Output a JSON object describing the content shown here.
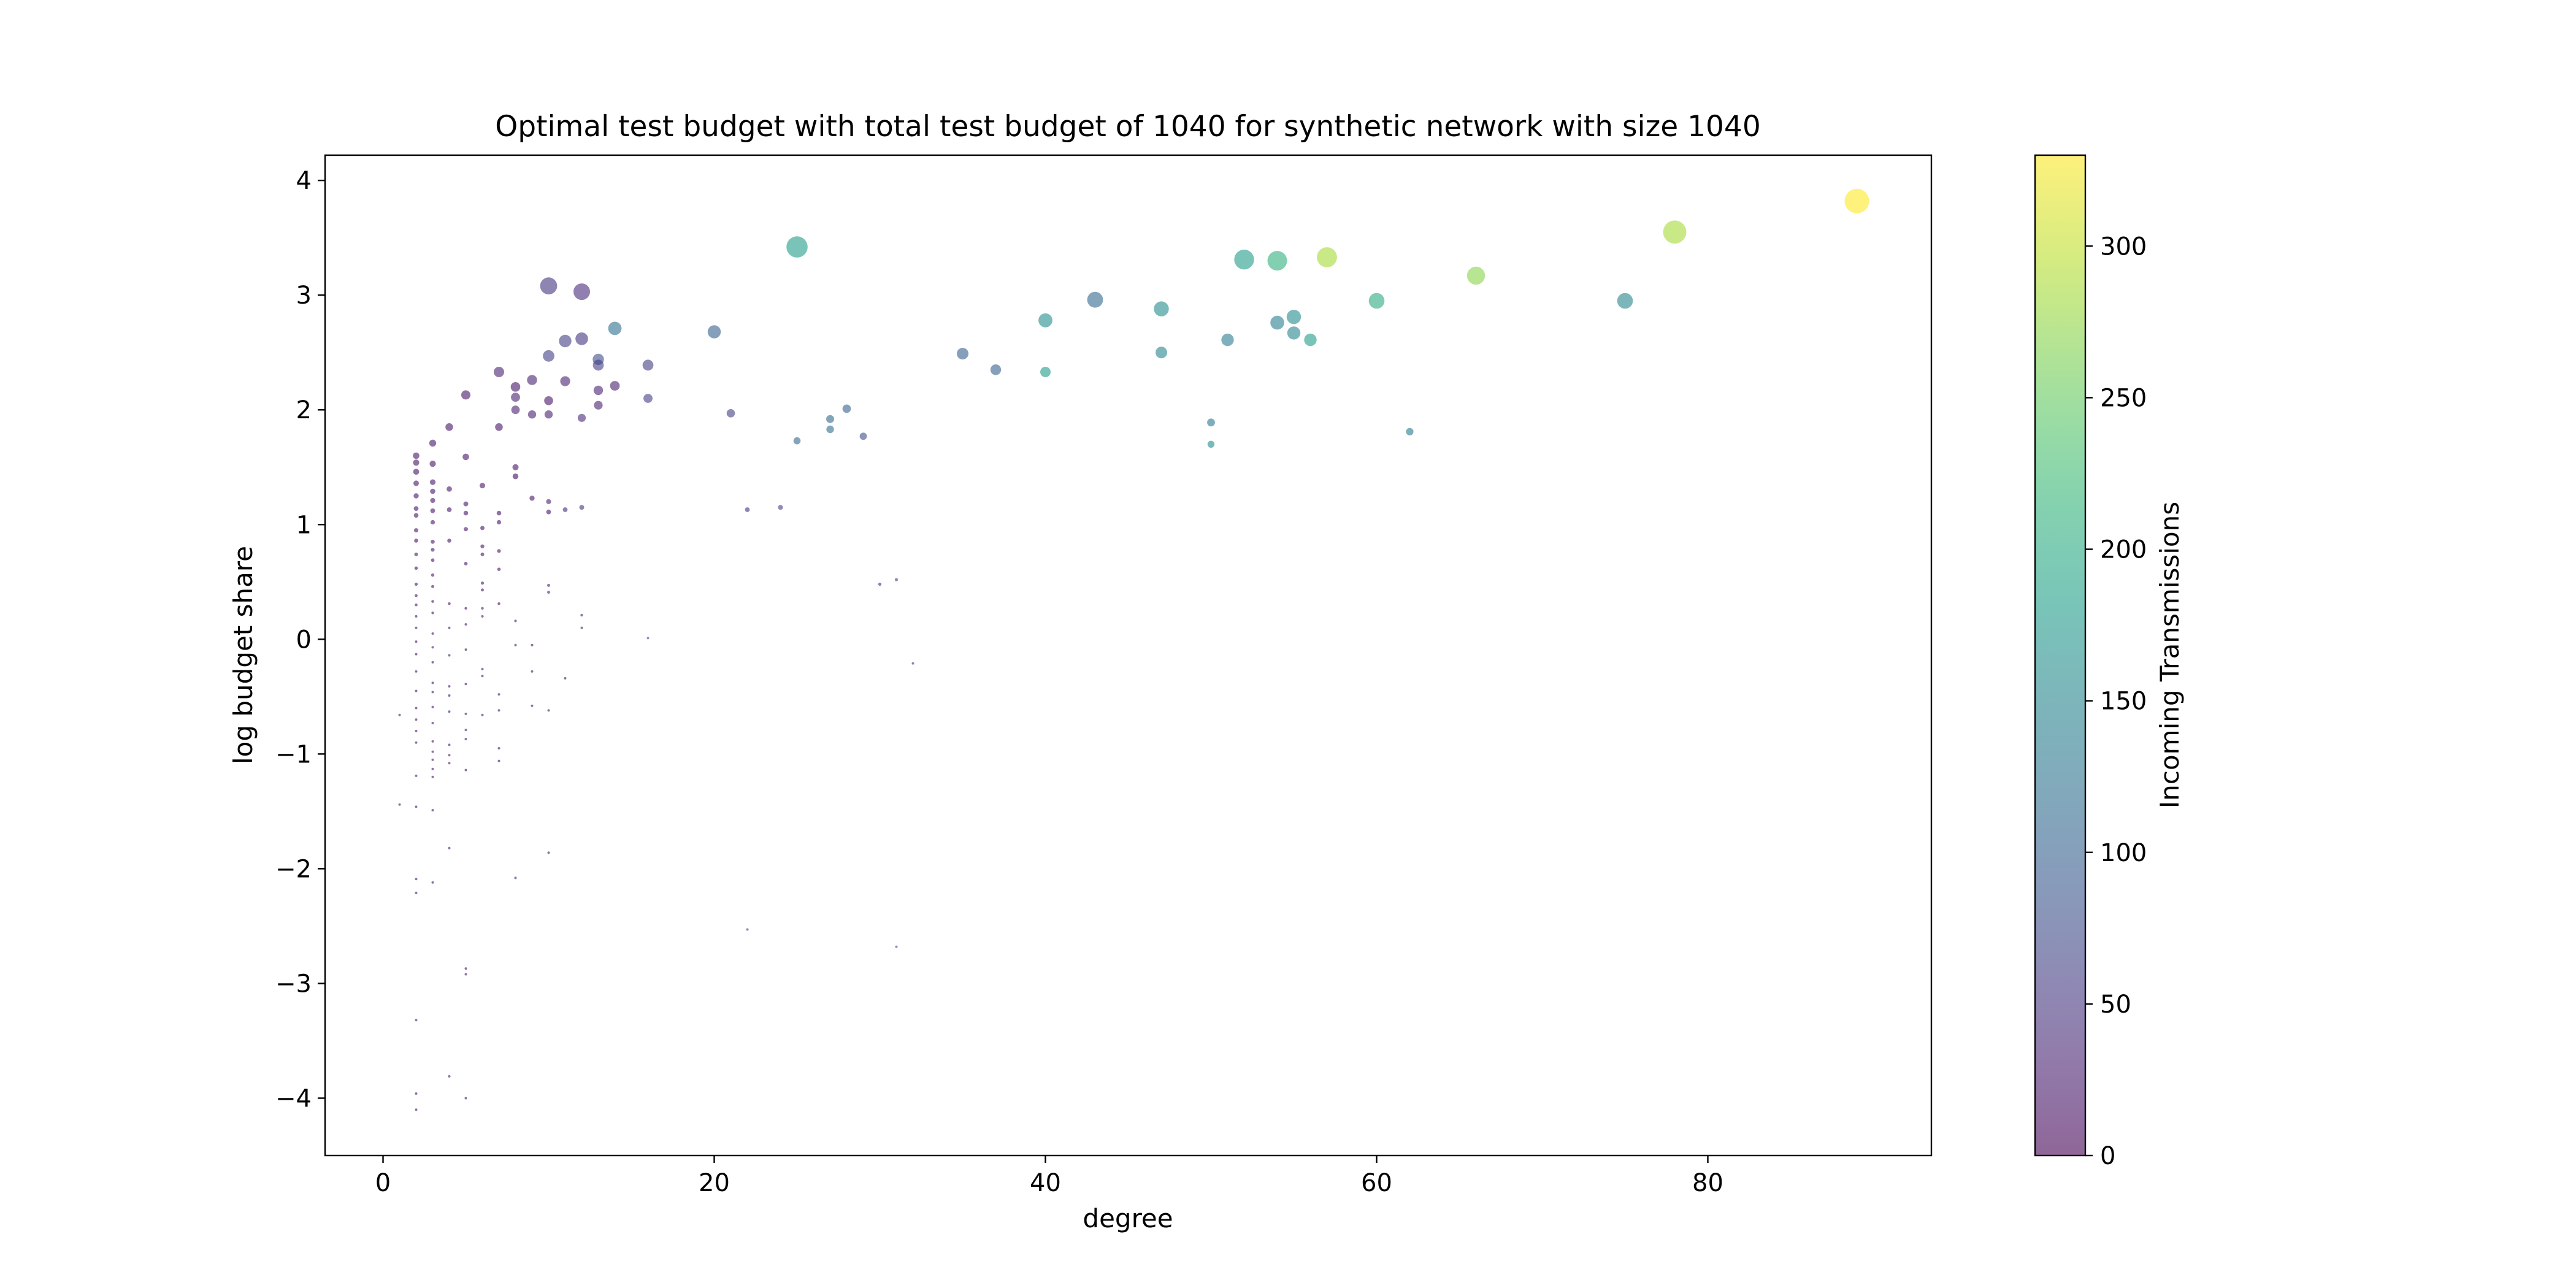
{
  "chart_data": {
    "type": "scatter",
    "title": "Optimal test budget with total test budget of 1040 for synthetic network with size 1040",
    "xlabel": "degree",
    "ylabel": "log budget share",
    "xlim": [
      -3.5,
      93.5
    ],
    "ylim": [
      -4.5,
      4.22
    ],
    "xticks": [
      0,
      20,
      40,
      60,
      80
    ],
    "yticks": [
      -4,
      -3,
      -2,
      -1,
      0,
      1,
      2,
      3,
      4
    ],
    "grid": false,
    "colorbar": {
      "label": "Incoming Transmissions",
      "range": [
        0,
        330
      ],
      "ticks": [
        0,
        50,
        100,
        150,
        200,
        250,
        300
      ],
      "colormap": "viridis",
      "alpha": 0.6
    },
    "point_size_encodes": "log budget share",
    "points": [
      {
        "x": 89,
        "y": 3.82,
        "c": 330
      },
      {
        "x": 78,
        "y": 3.55,
        "c": 285
      },
      {
        "x": 75,
        "y": 2.95,
        "c": 150
      },
      {
        "x": 66,
        "y": 3.17,
        "c": 270
      },
      {
        "x": 62,
        "y": 1.81,
        "c": 130
      },
      {
        "x": 60,
        "y": 2.95,
        "c": 200
      },
      {
        "x": 57,
        "y": 3.33,
        "c": 285
      },
      {
        "x": 56,
        "y": 2.61,
        "c": 180
      },
      {
        "x": 55,
        "y": 2.81,
        "c": 160
      },
      {
        "x": 55,
        "y": 2.67,
        "c": 150
      },
      {
        "x": 54,
        "y": 3.3,
        "c": 210
      },
      {
        "x": 54,
        "y": 2.76,
        "c": 140
      },
      {
        "x": 52,
        "y": 3.31,
        "c": 180
      },
      {
        "x": 51,
        "y": 2.61,
        "c": 140
      },
      {
        "x": 50,
        "y": 1.89,
        "c": 130
      },
      {
        "x": 50,
        "y": 1.7,
        "c": 160
      },
      {
        "x": 47,
        "y": 2.88,
        "c": 160
      },
      {
        "x": 47,
        "y": 2.5,
        "c": 150
      },
      {
        "x": 43,
        "y": 2.96,
        "c": 110
      },
      {
        "x": 40,
        "y": 2.78,
        "c": 160
      },
      {
        "x": 40,
        "y": 2.33,
        "c": 180
      },
      {
        "x": 37,
        "y": 2.35,
        "c": 100
      },
      {
        "x": 35,
        "y": 2.49,
        "c": 100
      },
      {
        "x": 32,
        "y": -0.21,
        "c": 40
      },
      {
        "x": 31,
        "y": 0.52,
        "c": 60
      },
      {
        "x": 31,
        "y": -2.68,
        "c": 60
      },
      {
        "x": 30,
        "y": 0.48,
        "c": 40
      },
      {
        "x": 29,
        "y": 1.77,
        "c": 80
      },
      {
        "x": 28,
        "y": 2.01,
        "c": 100
      },
      {
        "x": 27,
        "y": 1.92,
        "c": 110
      },
      {
        "x": 27,
        "y": 1.83,
        "c": 120
      },
      {
        "x": 25,
        "y": 3.42,
        "c": 180
      },
      {
        "x": 25,
        "y": 1.73,
        "c": 110
      },
      {
        "x": 24,
        "y": 1.15,
        "c": 60
      },
      {
        "x": 22,
        "y": 1.13,
        "c": 50
      },
      {
        "x": 22,
        "y": -2.53,
        "c": 50
      },
      {
        "x": 21,
        "y": 1.97,
        "c": 60
      },
      {
        "x": 20,
        "y": 2.68,
        "c": 100
      },
      {
        "x": 16,
        "y": 2.39,
        "c": 60
      },
      {
        "x": 16,
        "y": 2.1,
        "c": 60
      },
      {
        "x": 16,
        "y": 0.01,
        "c": 80
      },
      {
        "x": 14,
        "y": 2.71,
        "c": 120
      },
      {
        "x": 14,
        "y": 2.21,
        "c": 30
      },
      {
        "x": 13,
        "y": 2.44,
        "c": 80
      },
      {
        "x": 13,
        "y": 2.39,
        "c": 60
      },
      {
        "x": 13,
        "y": 2.17,
        "c": 30
      },
      {
        "x": 13,
        "y": 2.04,
        "c": 30
      },
      {
        "x": 12,
        "y": 3.03,
        "c": 40
      },
      {
        "x": 12,
        "y": 2.62,
        "c": 50
      },
      {
        "x": 12,
        "y": 1.93,
        "c": 40
      },
      {
        "x": 12,
        "y": 1.15,
        "c": 50
      },
      {
        "x": 12,
        "y": 0.21,
        "c": 30
      },
      {
        "x": 12,
        "y": 0.1,
        "c": 20
      },
      {
        "x": 11,
        "y": 2.6,
        "c": 60
      },
      {
        "x": 11,
        "y": 2.25,
        "c": 30
      },
      {
        "x": 11,
        "y": 1.13,
        "c": 40
      },
      {
        "x": 11,
        "y": -0.34,
        "c": 20
      },
      {
        "x": 10,
        "y": 3.08,
        "c": 50
      },
      {
        "x": 10,
        "y": 2.47,
        "c": 60
      },
      {
        "x": 10,
        "y": 2.08,
        "c": 20
      },
      {
        "x": 10,
        "y": 1.96,
        "c": 30
      },
      {
        "x": 10,
        "y": 1.2,
        "c": 30
      },
      {
        "x": 10,
        "y": 1.11,
        "c": 20
      },
      {
        "x": 10,
        "y": 0.47,
        "c": 30
      },
      {
        "x": 10,
        "y": 0.41,
        "c": 40
      },
      {
        "x": 10,
        "y": -0.62,
        "c": 20
      },
      {
        "x": 10,
        "y": -1.86,
        "c": 20
      },
      {
        "x": 9,
        "y": 2.26,
        "c": 30
      },
      {
        "x": 9,
        "y": 1.96,
        "c": 30
      },
      {
        "x": 9,
        "y": 1.23,
        "c": 20
      },
      {
        "x": 9,
        "y": -0.05,
        "c": 20
      },
      {
        "x": 9,
        "y": -0.28,
        "c": 20
      },
      {
        "x": 9,
        "y": -0.58,
        "c": 20
      },
      {
        "x": 8,
        "y": 2.2,
        "c": 20
      },
      {
        "x": 8,
        "y": 2.11,
        "c": 30
      },
      {
        "x": 8,
        "y": 2.0,
        "c": 30
      },
      {
        "x": 8,
        "y": 1.5,
        "c": 20
      },
      {
        "x": 8,
        "y": 1.42,
        "c": 10
      },
      {
        "x": 8,
        "y": 0.16,
        "c": 20
      },
      {
        "x": 8,
        "y": -0.05,
        "c": 20
      },
      {
        "x": 8,
        "y": -2.08,
        "c": 20
      },
      {
        "x": 7,
        "y": 2.33,
        "c": 30
      },
      {
        "x": 7,
        "y": 1.85,
        "c": 20
      },
      {
        "x": 7,
        "y": 1.1,
        "c": 20
      },
      {
        "x": 7,
        "y": 1.02,
        "c": 20
      },
      {
        "x": 7,
        "y": 0.77,
        "c": 20
      },
      {
        "x": 7,
        "y": 0.61,
        "c": 20
      },
      {
        "x": 7,
        "y": 0.31,
        "c": 20
      },
      {
        "x": 7,
        "y": -0.48,
        "c": 20
      },
      {
        "x": 7,
        "y": -0.62,
        "c": 20
      },
      {
        "x": 7,
        "y": -0.95,
        "c": 20
      },
      {
        "x": 7,
        "y": -1.06,
        "c": 20
      },
      {
        "x": 6,
        "y": 1.34,
        "c": 20
      },
      {
        "x": 6,
        "y": 0.97,
        "c": 20
      },
      {
        "x": 6,
        "y": 0.81,
        "c": 20
      },
      {
        "x": 6,
        "y": 0.74,
        "c": 20
      },
      {
        "x": 6,
        "y": 0.49,
        "c": 20
      },
      {
        "x": 6,
        "y": 0.43,
        "c": 20
      },
      {
        "x": 6,
        "y": 0.27,
        "c": 20
      },
      {
        "x": 6,
        "y": 0.2,
        "c": 20
      },
      {
        "x": 6,
        "y": -0.26,
        "c": 20
      },
      {
        "x": 6,
        "y": -0.32,
        "c": 20
      },
      {
        "x": 6,
        "y": -0.66,
        "c": 20
      },
      {
        "x": 5,
        "y": 2.13,
        "c": 20
      },
      {
        "x": 5,
        "y": 1.59,
        "c": 20
      },
      {
        "x": 5,
        "y": 1.18,
        "c": 20
      },
      {
        "x": 5,
        "y": 1.1,
        "c": 20
      },
      {
        "x": 5,
        "y": 0.96,
        "c": 20
      },
      {
        "x": 5,
        "y": 0.66,
        "c": 20
      },
      {
        "x": 5,
        "y": 0.27,
        "c": 20
      },
      {
        "x": 5,
        "y": 0.13,
        "c": 20
      },
      {
        "x": 5,
        "y": -0.09,
        "c": 20
      },
      {
        "x": 5,
        "y": -0.39,
        "c": 20
      },
      {
        "x": 5,
        "y": -0.65,
        "c": 20
      },
      {
        "x": 5,
        "y": -0.79,
        "c": 20
      },
      {
        "x": 5,
        "y": -0.87,
        "c": 20
      },
      {
        "x": 5,
        "y": -1.14,
        "c": 20
      },
      {
        "x": 5,
        "y": -2.87,
        "c": 20
      },
      {
        "x": 5,
        "y": -2.92,
        "c": 20
      },
      {
        "x": 5,
        "y": -4.0,
        "c": 20
      },
      {
        "x": 4,
        "y": 1.85,
        "c": 20
      },
      {
        "x": 4,
        "y": 1.31,
        "c": 20
      },
      {
        "x": 4,
        "y": 1.13,
        "c": 20
      },
      {
        "x": 4,
        "y": 0.86,
        "c": 20
      },
      {
        "x": 4,
        "y": 0.31,
        "c": 20
      },
      {
        "x": 4,
        "y": 0.1,
        "c": 20
      },
      {
        "x": 4,
        "y": -0.14,
        "c": 20
      },
      {
        "x": 4,
        "y": -0.41,
        "c": 20
      },
      {
        "x": 4,
        "y": -0.49,
        "c": 20
      },
      {
        "x": 4,
        "y": -0.63,
        "c": 20
      },
      {
        "x": 4,
        "y": -0.92,
        "c": 20
      },
      {
        "x": 4,
        "y": -1.01,
        "c": 20
      },
      {
        "x": 4,
        "y": -1.08,
        "c": 20
      },
      {
        "x": 4,
        "y": -1.82,
        "c": 20
      },
      {
        "x": 4,
        "y": -3.81,
        "c": 20
      },
      {
        "x": 3,
        "y": 1.71,
        "c": 20
      },
      {
        "x": 3,
        "y": 1.53,
        "c": 20
      },
      {
        "x": 3,
        "y": 1.37,
        "c": 20
      },
      {
        "x": 3,
        "y": 1.29,
        "c": 20
      },
      {
        "x": 3,
        "y": 1.21,
        "c": 20
      },
      {
        "x": 3,
        "y": 1.12,
        "c": 20
      },
      {
        "x": 3,
        "y": 1.02,
        "c": 20
      },
      {
        "x": 3,
        "y": 0.85,
        "c": 20
      },
      {
        "x": 3,
        "y": 0.78,
        "c": 20
      },
      {
        "x": 3,
        "y": 0.69,
        "c": 20
      },
      {
        "x": 3,
        "y": 0.56,
        "c": 20
      },
      {
        "x": 3,
        "y": 0.46,
        "c": 20
      },
      {
        "x": 3,
        "y": 0.33,
        "c": 20
      },
      {
        "x": 3,
        "y": 0.23,
        "c": 20
      },
      {
        "x": 3,
        "y": 0.05,
        "c": 20
      },
      {
        "x": 3,
        "y": -0.07,
        "c": 20
      },
      {
        "x": 3,
        "y": -0.2,
        "c": 20
      },
      {
        "x": 3,
        "y": -0.38,
        "c": 20
      },
      {
        "x": 3,
        "y": -0.46,
        "c": 20
      },
      {
        "x": 3,
        "y": -0.59,
        "c": 20
      },
      {
        "x": 3,
        "y": -0.73,
        "c": 20
      },
      {
        "x": 3,
        "y": -0.89,
        "c": 20
      },
      {
        "x": 3,
        "y": -0.98,
        "c": 20
      },
      {
        "x": 3,
        "y": -1.05,
        "c": 20
      },
      {
        "x": 3,
        "y": -1.13,
        "c": 20
      },
      {
        "x": 3,
        "y": -1.2,
        "c": 20
      },
      {
        "x": 3,
        "y": -1.49,
        "c": 20
      },
      {
        "x": 3,
        "y": -2.12,
        "c": 20
      },
      {
        "x": 2,
        "y": 1.6,
        "c": 20
      },
      {
        "x": 2,
        "y": 1.54,
        "c": 20
      },
      {
        "x": 2,
        "y": 1.46,
        "c": 20
      },
      {
        "x": 2,
        "y": 1.36,
        "c": 20
      },
      {
        "x": 2,
        "y": 1.25,
        "c": 20
      },
      {
        "x": 2,
        "y": 1.14,
        "c": 20
      },
      {
        "x": 2,
        "y": 1.08,
        "c": 20
      },
      {
        "x": 2,
        "y": 0.95,
        "c": 20
      },
      {
        "x": 2,
        "y": 0.86,
        "c": 20
      },
      {
        "x": 2,
        "y": 0.74,
        "c": 20
      },
      {
        "x": 2,
        "y": 0.62,
        "c": 20
      },
      {
        "x": 2,
        "y": 0.48,
        "c": 20
      },
      {
        "x": 2,
        "y": 0.38,
        "c": 20
      },
      {
        "x": 2,
        "y": 0.3,
        "c": 20
      },
      {
        "x": 2,
        "y": 0.2,
        "c": 20
      },
      {
        "x": 2,
        "y": 0.1,
        "c": 20
      },
      {
        "x": 2,
        "y": -0.02,
        "c": 20
      },
      {
        "x": 2,
        "y": -0.13,
        "c": 20
      },
      {
        "x": 2,
        "y": -0.28,
        "c": 20
      },
      {
        "x": 2,
        "y": -0.45,
        "c": 20
      },
      {
        "x": 2,
        "y": -0.6,
        "c": 20
      },
      {
        "x": 2,
        "y": -0.7,
        "c": 20
      },
      {
        "x": 2,
        "y": -0.8,
        "c": 20
      },
      {
        "x": 2,
        "y": -0.9,
        "c": 20
      },
      {
        "x": 2,
        "y": -1.19,
        "c": 20
      },
      {
        "x": 2,
        "y": -1.46,
        "c": 20
      },
      {
        "x": 2,
        "y": -2.09,
        "c": 20
      },
      {
        "x": 2,
        "y": -2.21,
        "c": 20
      },
      {
        "x": 2,
        "y": -3.32,
        "c": 20
      },
      {
        "x": 2,
        "y": -3.96,
        "c": 20
      },
      {
        "x": 2,
        "y": -4.1,
        "c": 20
      },
      {
        "x": 1,
        "y": -0.66,
        "c": 20
      },
      {
        "x": 1,
        "y": -1.44,
        "c": 20
      }
    ]
  }
}
